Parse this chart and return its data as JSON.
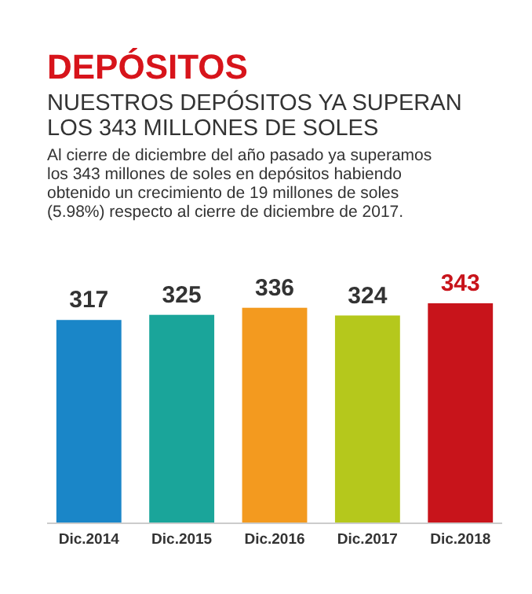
{
  "chart_data": {
    "type": "bar",
    "title": "DEPÓSITOS",
    "subtitle": "NUESTROS DEPÓSITOS YA SUPERAN LOS 343 MILLONES DE SOLES",
    "annotations": [
      "Al cierre de diciembre del año pasado ya superamos los 343 millones de soles en depósitos habiendo obtenido un crecimiento de 19 millones de soles (5.98%) respecto al cierre de diciembre de 2017."
    ],
    "categories": [
      "Dic.2014",
      "Dic.2015",
      "Dic.2016",
      "Dic.2017",
      "Dic.2018"
    ],
    "values": [
      317,
      325,
      336,
      324,
      343
    ],
    "colors": [
      "#1a86c8",
      "#1aa59a",
      "#f39a1f",
      "#b5c81c",
      "#c8141b"
    ],
    "tick_labels": "x",
    "data_labels": true
  }
}
